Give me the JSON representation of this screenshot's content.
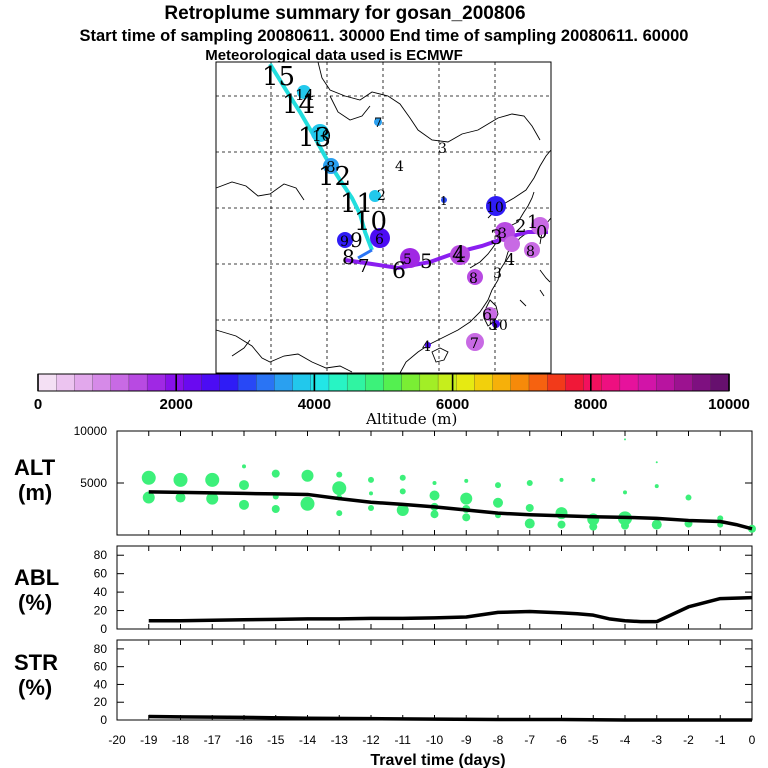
{
  "header": {
    "title": "Retroplume summary for gosan_200806",
    "subtitle": "Start time of sampling 20080611. 30000     End time of sampling 20080611. 60000",
    "met_line": "Meteorological data used is ECMWF"
  },
  "colors": {
    "cyan_track": "#22dede",
    "purple_track": "#8a1ef0",
    "scatter": "#3cf07a",
    "line": "#000000"
  },
  "chart_data": [
    {
      "type": "map-trajectory",
      "name": "retroplume-map",
      "cyan_labels": [
        "15",
        "14",
        "13",
        "12",
        "11",
        "10",
        "9",
        "8"
      ],
      "purple_labels": [
        "7",
        "6",
        "5",
        "4",
        "3",
        "2",
        "1",
        "0"
      ],
      "cluster_labels": [
        "15",
        "14",
        "13",
        "12",
        "11",
        "10",
        "9",
        "8",
        "7",
        "6",
        "5",
        "4",
        "3",
        "2",
        "1",
        "0"
      ]
    },
    {
      "type": "colorbar",
      "name": "altitude-colorbar",
      "range": [
        0,
        10000
      ],
      "ticks": [
        0,
        2000,
        4000,
        6000,
        8000,
        10000
      ],
      "tick_labels": [
        "0",
        "2000",
        "4000",
        "6000",
        "8000",
        "10000"
      ],
      "label": "Altitude (m)",
      "colors": [
        "#f4e0f4",
        "#ecc4f0",
        "#e2a8ec",
        "#d68ae8",
        "#c86ae4",
        "#b84ae2",
        "#a028e4",
        "#8810ea",
        "#6a0af0",
        "#4c0cf4",
        "#2f1cf6",
        "#2848f6",
        "#2a74f4",
        "#2aa0f0",
        "#22c8ec",
        "#22e6e6",
        "#28f4c4",
        "#30f4a2",
        "#3cf27a",
        "#54f050",
        "#7aee34",
        "#a2ee26",
        "#c6ee1c",
        "#e6ea12",
        "#f2d00c",
        "#f6b00a",
        "#f68a0a",
        "#f66210",
        "#f23a1a",
        "#f01838",
        "#f2105e",
        "#ee1080",
        "#e6129c",
        "#d214a8",
        "#b814a0",
        "#9c1290",
        "#7e1080",
        "#66106e"
      ]
    },
    {
      "type": "line+scatter",
      "name": "alt-panel",
      "ylabel": "ALT\n(m)",
      "ylim": [
        0,
        10000
      ],
      "yticks": [
        5000,
        10000
      ],
      "xlim": [
        -20,
        0
      ],
      "line_x": [
        0,
        -0.5,
        -1,
        -2,
        -3,
        -4,
        -5,
        -6,
        -7,
        -8,
        -9,
        -10,
        -11,
        -12,
        -13,
        -14,
        -15,
        -16,
        -17,
        -18,
        -19
      ],
      "line_y": [
        600,
        1000,
        1300,
        1400,
        1600,
        1700,
        1750,
        1850,
        1950,
        2100,
        2400,
        2700,
        2950,
        3150,
        3500,
        3900,
        3950,
        4000,
        4050,
        4100,
        4150
      ],
      "scatter": [
        {
          "x": -19,
          "y": 5500,
          "s": 7
        },
        {
          "x": -19,
          "y": 3600,
          "s": 6
        },
        {
          "x": -18,
          "y": 5300,
          "s": 7
        },
        {
          "x": -18,
          "y": 3600,
          "s": 5
        },
        {
          "x": -17,
          "y": 5300,
          "s": 7
        },
        {
          "x": -17,
          "y": 3500,
          "s": 6
        },
        {
          "x": -16,
          "y": 6600,
          "s": 2
        },
        {
          "x": -16,
          "y": 4800,
          "s": 5
        },
        {
          "x": -16,
          "y": 2900,
          "s": 5
        },
        {
          "x": -15,
          "y": 5900,
          "s": 4
        },
        {
          "x": -15,
          "y": 3700,
          "s": 3
        },
        {
          "x": -15,
          "y": 2500,
          "s": 4
        },
        {
          "x": -14,
          "y": 5700,
          "s": 6
        },
        {
          "x": -14,
          "y": 3000,
          "s": 7
        },
        {
          "x": -13,
          "y": 5800,
          "s": 3
        },
        {
          "x": -13,
          "y": 4500,
          "s": 7
        },
        {
          "x": -13,
          "y": 3600,
          "s": 3
        },
        {
          "x": -13,
          "y": 2100,
          "s": 3
        },
        {
          "x": -12,
          "y": 5300,
          "s": 3
        },
        {
          "x": -12,
          "y": 4000,
          "s": 2
        },
        {
          "x": -12,
          "y": 2600,
          "s": 3
        },
        {
          "x": -11,
          "y": 5500,
          "s": 3
        },
        {
          "x": -11,
          "y": 4200,
          "s": 3
        },
        {
          "x": -11,
          "y": 2400,
          "s": 6
        },
        {
          "x": -10,
          "y": 5000,
          "s": 2
        },
        {
          "x": -10,
          "y": 3800,
          "s": 5
        },
        {
          "x": -10,
          "y": 2700,
          "s": 4
        },
        {
          "x": -10,
          "y": 2000,
          "s": 4
        },
        {
          "x": -9,
          "y": 5200,
          "s": 2
        },
        {
          "x": -9,
          "y": 3500,
          "s": 6
        },
        {
          "x": -9,
          "y": 2500,
          "s": 4
        },
        {
          "x": -9,
          "y": 1700,
          "s": 4
        },
        {
          "x": -8,
          "y": 4800,
          "s": 3
        },
        {
          "x": -8,
          "y": 3100,
          "s": 5
        },
        {
          "x": -8,
          "y": 1900,
          "s": 3
        },
        {
          "x": -7,
          "y": 5000,
          "s": 3
        },
        {
          "x": -7,
          "y": 2600,
          "s": 4
        },
        {
          "x": -7,
          "y": 1100,
          "s": 5
        },
        {
          "x": -6,
          "y": 5300,
          "s": 2
        },
        {
          "x": -6,
          "y": 2100,
          "s": 6
        },
        {
          "x": -6,
          "y": 1000,
          "s": 4
        },
        {
          "x": -5,
          "y": 5300,
          "s": 2
        },
        {
          "x": -5,
          "y": 1500,
          "s": 6
        },
        {
          "x": -5,
          "y": 800,
          "s": 4
        },
        {
          "x": -4,
          "y": 9200,
          "s": 1
        },
        {
          "x": -4,
          "y": 4100,
          "s": 2
        },
        {
          "x": -4,
          "y": 1600,
          "s": 7
        },
        {
          "x": -4,
          "y": 900,
          "s": 4
        },
        {
          "x": -3,
          "y": 7000,
          "s": 1
        },
        {
          "x": -3,
          "y": 4700,
          "s": 2
        },
        {
          "x": -3,
          "y": 1000,
          "s": 5
        },
        {
          "x": -2,
          "y": 3600,
          "s": 3
        },
        {
          "x": -2,
          "y": 1100,
          "s": 4
        },
        {
          "x": -1,
          "y": 1600,
          "s": 3
        },
        {
          "x": -1,
          "y": 1000,
          "s": 3
        },
        {
          "x": 0,
          "y": 600,
          "s": 4
        }
      ]
    },
    {
      "type": "line",
      "name": "abl-panel",
      "ylabel": "ABL\n(%)",
      "ylim": [
        0,
        90
      ],
      "yticks": [
        0,
        20,
        40,
        60,
        80
      ],
      "xlim": [
        -20,
        0
      ],
      "x": [
        0,
        -1,
        -2,
        -3,
        -3.5,
        -4,
        -4.5,
        -5,
        -5.5,
        -6,
        -7,
        -8,
        -9,
        -10,
        -11,
        -12,
        -13,
        -14,
        -15,
        -16,
        -17,
        -18,
        -19
      ],
      "y": [
        34,
        33,
        24,
        8,
        8,
        9,
        11,
        15,
        16.5,
        17.5,
        19,
        18,
        13,
        12,
        11.5,
        11.5,
        11,
        11,
        10.5,
        10,
        9.5,
        9,
        9
      ]
    },
    {
      "type": "line",
      "name": "str-panel",
      "ylabel": "STR\n(%)",
      "ylim": [
        0,
        90
      ],
      "yticks": [
        0,
        20,
        40,
        60,
        80
      ],
      "xlim": [
        -20,
        0
      ],
      "xlabel": "Travel time (days)",
      "xticks": [
        -20,
        -19,
        -18,
        -17,
        -16,
        -15,
        -14,
        -13,
        -12,
        -11,
        -10,
        -9,
        -8,
        -7,
        -6,
        -5,
        -4,
        -3,
        -2,
        -1,
        0
      ],
      "xtick_labels": [
        "-20",
        "-19",
        "-18",
        "-17",
        "-16",
        "-15",
        "-14",
        "-13",
        "-12",
        "-11",
        "-10",
        "-9",
        "-8",
        "-7",
        "-6",
        "-5",
        "-4",
        "-3",
        "-2",
        "-1",
        "0"
      ],
      "x": [
        0,
        -2,
        -4,
        -6,
        -8,
        -10,
        -12,
        -14,
        -16,
        -18,
        -19
      ],
      "y": [
        0,
        0,
        0,
        0.5,
        0.5,
        1,
        1.5,
        2,
        3,
        3.5,
        4
      ]
    }
  ]
}
